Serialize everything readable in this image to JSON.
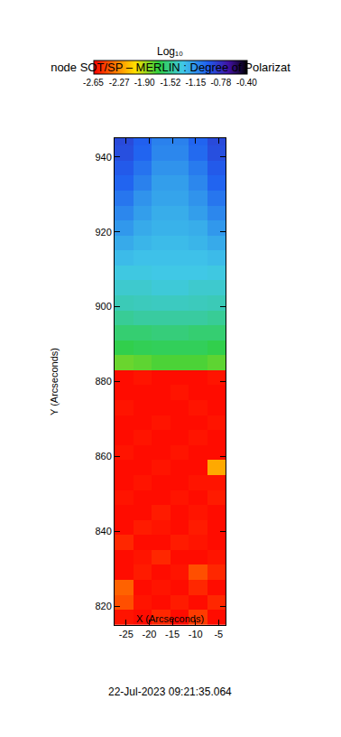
{
  "chart_data": {
    "type": "heatmap",
    "title": "node SOT/SP – MERLIN : Degree of Polarizat",
    "x_label": "X (Arcseconds)",
    "y_label": "Y (Arcseconds)",
    "annotation": "22-Jul-2023 09:21:35.064",
    "xlim": [
      -27.5,
      -3.5
    ],
    "ylim": [
      815,
      945
    ],
    "xticks": [
      -25,
      -20,
      -15,
      -10,
      -5
    ],
    "yticks": [
      820,
      840,
      860,
      880,
      900,
      920,
      940
    ],
    "grid": false,
    "x": [
      -25.5,
      -21.5,
      -17.5,
      -13.5,
      -9.5,
      -5.5
    ],
    "y": [
      817,
      821,
      825,
      829,
      833,
      837,
      841,
      845,
      849,
      853,
      857,
      861,
      865,
      869,
      873,
      877,
      881,
      885,
      889,
      893,
      897,
      901,
      905,
      909,
      913,
      917,
      921,
      925,
      929,
      933,
      937,
      941,
      945
    ],
    "z": [
      [
        -2.6,
        -2.62,
        -2.55,
        -2.62,
        -2.5,
        -2.62
      ],
      [
        -2.45,
        -2.6,
        -2.62,
        -2.58,
        -2.62,
        -2.55
      ],
      [
        -2.4,
        -2.62,
        -2.6,
        -2.62,
        -2.55,
        -2.62
      ],
      [
        -2.62,
        -2.58,
        -2.62,
        -2.6,
        -2.45,
        -2.55
      ],
      [
        -2.62,
        -2.6,
        -2.55,
        -2.62,
        -2.62,
        -2.6
      ],
      [
        -2.55,
        -2.62,
        -2.62,
        -2.58,
        -2.6,
        -2.62
      ],
      [
        -2.62,
        -2.58,
        -2.6,
        -2.62,
        -2.58,
        -2.62
      ],
      [
        -2.62,
        -2.62,
        -2.58,
        -2.62,
        -2.6,
        -2.62
      ],
      [
        -2.6,
        -2.62,
        -2.62,
        -2.6,
        -2.62,
        -2.58
      ],
      [
        -2.62,
        -2.6,
        -2.62,
        -2.62,
        -2.6,
        -2.6
      ],
      [
        -2.62,
        -2.62,
        -2.6,
        -2.62,
        -2.62,
        -2.2
      ],
      [
        -2.6,
        -2.62,
        -2.62,
        -2.6,
        -2.62,
        -2.62
      ],
      [
        -2.62,
        -2.6,
        -2.62,
        -2.62,
        -2.6,
        -2.62
      ],
      [
        -2.62,
        -2.62,
        -2.6,
        -2.62,
        -2.62,
        -2.6
      ],
      [
        -2.6,
        -2.62,
        -2.62,
        -2.62,
        -2.6,
        -2.62
      ],
      [
        -2.62,
        -2.62,
        -2.62,
        -2.6,
        -2.62,
        -2.62
      ],
      [
        -2.62,
        -2.6,
        -2.62,
        -2.62,
        -2.62,
        -2.6
      ],
      [
        -1.8,
        -1.78,
        -1.75,
        -1.75,
        -1.75,
        -1.78
      ],
      [
        -1.68,
        -1.66,
        -1.65,
        -1.65,
        -1.65,
        -1.68
      ],
      [
        -1.6,
        -1.6,
        -1.58,
        -1.58,
        -1.6,
        -1.6
      ],
      [
        -1.52,
        -1.5,
        -1.5,
        -1.5,
        -1.5,
        -1.52
      ],
      [
        -1.45,
        -1.44,
        -1.43,
        -1.43,
        -1.44,
        -1.45
      ],
      [
        -1.4,
        -1.4,
        -1.38,
        -1.38,
        -1.4,
        -1.4
      ],
      [
        -1.36,
        -1.36,
        -1.35,
        -1.35,
        -1.35,
        -1.36
      ],
      [
        -1.3,
        -1.32,
        -1.32,
        -1.32,
        -1.32,
        -1.3
      ],
      [
        -1.24,
        -1.28,
        -1.3,
        -1.3,
        -1.28,
        -1.24
      ],
      [
        -1.18,
        -1.24,
        -1.27,
        -1.27,
        -1.25,
        -1.18
      ],
      [
        -1.12,
        -1.2,
        -1.25,
        -1.25,
        -1.2,
        -1.12
      ],
      [
        -1.06,
        -1.16,
        -1.22,
        -1.22,
        -1.16,
        -1.06
      ],
      [
        -1.0,
        -1.1,
        -1.2,
        -1.2,
        -1.12,
        -1.0
      ],
      [
        -0.96,
        -1.05,
        -1.16,
        -1.16,
        -1.08,
        -0.96
      ],
      [
        -0.92,
        -1.0,
        -1.12,
        -1.12,
        -1.02,
        -0.92
      ],
      [
        -0.9,
        -0.98,
        -1.1,
        -1.1,
        -1.0,
        -0.9
      ]
    ],
    "colorbar": {
      "title": "Log₁₀",
      "range": [
        -2.65,
        -0.4
      ],
      "ticks": [
        -2.65,
        -2.27,
        {
          "value": -1.9,
          "label": "-1.90"
        },
        -1.52,
        -1.15,
        -0.78,
        {
          "value": -0.4,
          "label": "-0.40"
        }
      ]
    }
  }
}
